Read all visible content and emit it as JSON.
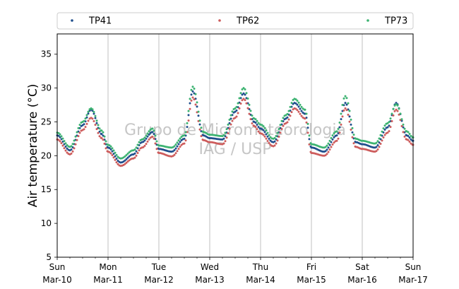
{
  "chart_data": {
    "type": "scatter",
    "ylabel": "Air temperature (°C)",
    "ylim": [
      5,
      38
    ],
    "yticks": [
      5,
      10,
      15,
      20,
      25,
      30,
      35
    ],
    "xlim": [
      "2024-03-10",
      "2024-03-17"
    ],
    "xticks": [
      {
        "day": "Sun",
        "date": "Mar-10"
      },
      {
        "day": "Mon",
        "date": "Mar-11"
      },
      {
        "day": "Tue",
        "date": "Mar-12"
      },
      {
        "day": "Wed",
        "date": "Mar-13"
      },
      {
        "day": "Thu",
        "date": "Mar-14"
      },
      {
        "day": "Fri",
        "date": "Mar-15"
      },
      {
        "day": "Sat",
        "date": "Mar-16"
      },
      {
        "day": "Sun",
        "date": "Mar-17"
      }
    ],
    "grid": "vertical",
    "legend_position": "top",
    "watermark": [
      "Grupo de Micrometeorologia",
      "IAG / USP"
    ],
    "series": [
      {
        "name": "TP41",
        "color": "#1f4e8c",
        "points": [
          [
            "2024-03-10 00:00",
            23.0
          ],
          [
            "2024-03-10 06:00",
            20.8
          ],
          [
            "2024-03-10 12:00",
            24.5
          ],
          [
            "2024-03-10 16:00",
            26.8
          ],
          [
            "2024-03-10 21:00",
            23.2
          ],
          [
            "2024-03-11 00:00",
            21.2
          ],
          [
            "2024-03-11 06:00",
            19.0
          ],
          [
            "2024-03-11 12:00",
            20.2
          ],
          [
            "2024-03-11 16:00",
            22.0
          ],
          [
            "2024-03-11 21:00",
            23.5
          ],
          [
            "2024-03-12 00:00",
            21.0
          ],
          [
            "2024-03-12 06:00",
            20.6
          ],
          [
            "2024-03-12 12:00",
            22.5
          ],
          [
            "2024-03-12 16:00",
            29.5
          ],
          [
            "2024-03-12 21:00",
            23.0
          ],
          [
            "2024-03-13 00:00",
            22.6
          ],
          [
            "2024-03-13 06:00",
            22.4
          ],
          [
            "2024-03-13 12:00",
            26.5
          ],
          [
            "2024-03-13 16:00",
            29.2
          ],
          [
            "2024-03-13 21:00",
            25.0
          ],
          [
            "2024-03-14 00:00",
            24.0
          ],
          [
            "2024-03-14 06:00",
            22.0
          ],
          [
            "2024-03-14 12:00",
            25.5
          ],
          [
            "2024-03-14 16:00",
            27.8
          ],
          [
            "2024-03-14 21:00",
            26.2
          ],
          [
            "2024-03-15 00:00",
            21.2
          ],
          [
            "2024-03-15 06:00",
            20.6
          ],
          [
            "2024-03-15 12:00",
            23.0
          ],
          [
            "2024-03-15 16:00",
            27.8
          ],
          [
            "2024-03-15 21:00",
            22.0
          ],
          [
            "2024-03-16 00:00",
            21.7
          ],
          [
            "2024-03-16 06:00",
            21.2
          ],
          [
            "2024-03-16 12:00",
            24.2
          ],
          [
            "2024-03-16 16:00",
            27.8
          ],
          [
            "2024-03-16 21:00",
            23.0
          ],
          [
            "2024-03-17 00:00",
            22.2
          ]
        ]
      },
      {
        "name": "TP62",
        "color": "#cd5c5c",
        "points": [
          [
            "2024-03-10 00:00",
            22.4
          ],
          [
            "2024-03-10 06:00",
            20.2
          ],
          [
            "2024-03-10 12:00",
            23.8
          ],
          [
            "2024-03-10 16:00",
            25.6
          ],
          [
            "2024-03-10 21:00",
            22.6
          ],
          [
            "2024-03-11 00:00",
            20.6
          ],
          [
            "2024-03-11 06:00",
            18.5
          ],
          [
            "2024-03-11 12:00",
            19.6
          ],
          [
            "2024-03-11 16:00",
            21.2
          ],
          [
            "2024-03-11 21:00",
            22.8
          ],
          [
            "2024-03-12 00:00",
            20.4
          ],
          [
            "2024-03-12 06:00",
            19.9
          ],
          [
            "2024-03-12 12:00",
            21.8
          ],
          [
            "2024-03-12 16:00",
            28.6
          ],
          [
            "2024-03-12 21:00",
            22.3
          ],
          [
            "2024-03-13 00:00",
            22.0
          ],
          [
            "2024-03-13 06:00",
            21.7
          ],
          [
            "2024-03-13 12:00",
            25.6
          ],
          [
            "2024-03-13 16:00",
            28.4
          ],
          [
            "2024-03-13 21:00",
            24.4
          ],
          [
            "2024-03-14 00:00",
            23.3
          ],
          [
            "2024-03-14 06:00",
            21.4
          ],
          [
            "2024-03-14 12:00",
            24.8
          ],
          [
            "2024-03-14 16:00",
            27.0
          ],
          [
            "2024-03-14 21:00",
            25.5
          ],
          [
            "2024-03-15 00:00",
            20.4
          ],
          [
            "2024-03-15 06:00",
            20.0
          ],
          [
            "2024-03-15 12:00",
            22.2
          ],
          [
            "2024-03-15 16:00",
            27.0
          ],
          [
            "2024-03-15 21:00",
            21.3
          ],
          [
            "2024-03-16 00:00",
            21.0
          ],
          [
            "2024-03-16 06:00",
            20.6
          ],
          [
            "2024-03-16 12:00",
            23.4
          ],
          [
            "2024-03-16 16:00",
            26.8
          ],
          [
            "2024-03-16 21:00",
            22.4
          ],
          [
            "2024-03-17 00:00",
            21.6
          ]
        ]
      },
      {
        "name": "TP73",
        "color": "#3cb371",
        "points": [
          [
            "2024-03-10 00:00",
            23.4
          ],
          [
            "2024-03-10 06:00",
            21.3
          ],
          [
            "2024-03-10 12:00",
            25.0
          ],
          [
            "2024-03-10 16:00",
            27.0
          ],
          [
            "2024-03-10 21:00",
            23.7
          ],
          [
            "2024-03-11 00:00",
            21.6
          ],
          [
            "2024-03-11 06:00",
            19.6
          ],
          [
            "2024-03-11 12:00",
            20.8
          ],
          [
            "2024-03-11 16:00",
            22.4
          ],
          [
            "2024-03-11 21:00",
            24.0
          ],
          [
            "2024-03-12 00:00",
            21.5
          ],
          [
            "2024-03-12 06:00",
            21.2
          ],
          [
            "2024-03-12 12:00",
            23.0
          ],
          [
            "2024-03-12 16:00",
            30.2
          ],
          [
            "2024-03-12 21:00",
            23.5
          ],
          [
            "2024-03-13 00:00",
            23.1
          ],
          [
            "2024-03-13 06:00",
            22.9
          ],
          [
            "2024-03-13 12:00",
            27.0
          ],
          [
            "2024-03-13 16:00",
            30.0
          ],
          [
            "2024-03-13 21:00",
            25.5
          ],
          [
            "2024-03-14 00:00",
            24.6
          ],
          [
            "2024-03-14 06:00",
            22.5
          ],
          [
            "2024-03-14 12:00",
            26.0
          ],
          [
            "2024-03-14 16:00",
            28.4
          ],
          [
            "2024-03-14 21:00",
            26.8
          ],
          [
            "2024-03-15 00:00",
            21.7
          ],
          [
            "2024-03-15 06:00",
            21.2
          ],
          [
            "2024-03-15 12:00",
            23.6
          ],
          [
            "2024-03-15 16:00",
            28.8
          ],
          [
            "2024-03-15 21:00",
            22.5
          ],
          [
            "2024-03-16 00:00",
            22.2
          ],
          [
            "2024-03-16 06:00",
            21.8
          ],
          [
            "2024-03-16 12:00",
            24.8
          ],
          [
            "2024-03-16 16:00",
            27.6
          ],
          [
            "2024-03-16 21:00",
            23.6
          ],
          [
            "2024-03-17 00:00",
            22.7
          ]
        ]
      }
    ]
  }
}
